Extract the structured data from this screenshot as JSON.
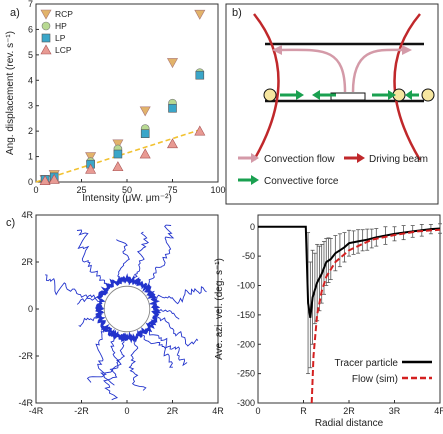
{
  "panels": {
    "a": {
      "letter": "a)"
    },
    "b": {
      "letter": "b)"
    },
    "c": {
      "letter": "c)"
    },
    "d": {
      "letter": ""
    }
  },
  "diagram_b": {
    "legend": [
      {
        "label": "Convection flow",
        "color": "#d49aa8"
      },
      {
        "label": "Driving beam",
        "color": "#c0282b"
      },
      {
        "label": "Convective force",
        "color": "#1aa050"
      }
    ]
  },
  "chart_data": [
    {
      "panel": "a",
      "type": "scatter",
      "xlabel": "Intensity (μW. μm⁻²)",
      "ylabel": "Ang. displacement (rev. s⁻¹)",
      "xlim": [
        0,
        100
      ],
      "ylim": [
        0,
        7
      ],
      "xticks": [
        "0",
        "25",
        "50",
        "75",
        "100"
      ],
      "yticks": [
        "0",
        "1",
        "2",
        "3",
        "4",
        "5",
        "6",
        "7"
      ],
      "legend_position": "top-left",
      "series": [
        {
          "name": "RCP",
          "marker": "triangle-down",
          "color": "#e2b36a",
          "x": [
            5,
            10,
            30,
            45,
            60,
            75,
            90
          ],
          "y": [
            0.1,
            0.3,
            1.0,
            1.5,
            2.8,
            4.7,
            6.6
          ]
        },
        {
          "name": "HP",
          "marker": "circle",
          "color": "#b8d992",
          "x": [
            5,
            10,
            30,
            45,
            60,
            75,
            90
          ],
          "y": [
            0.1,
            0.2,
            0.8,
            1.3,
            2.1,
            3.1,
            4.3
          ]
        },
        {
          "name": "LP",
          "marker": "square",
          "color": "#3aa6c9",
          "x": [
            5,
            10,
            30,
            45,
            60,
            75,
            90
          ],
          "y": [
            0.1,
            0.2,
            0.7,
            1.1,
            1.9,
            2.9,
            4.2
          ]
        },
        {
          "name": "LCP",
          "marker": "triangle-up",
          "color": "#e89a93",
          "x": [
            5,
            10,
            30,
            45,
            60,
            75,
            90
          ],
          "y": [
            0.05,
            0.1,
            0.5,
            0.6,
            1.1,
            1.5,
            2.0
          ]
        }
      ],
      "fit": {
        "color": "#f2c230",
        "x": [
          0,
          90
        ],
        "y": [
          0.0,
          2.05
        ]
      }
    },
    {
      "panel": "c",
      "type": "line",
      "description_free": true,
      "xlim": [
        -4,
        4
      ],
      "ylim": [
        -4,
        4
      ],
      "xticks": [
        "-4R",
        "-2R",
        "0",
        "2R",
        "4R"
      ],
      "yticks": [
        "4R",
        "2R",
        "0",
        "-2R",
        "-4R"
      ],
      "color": "#2233cc",
      "trajectory_angles_deg": [
        20,
        45,
        75,
        100,
        125,
        150,
        165,
        195,
        220,
        245,
        265,
        285,
        300,
        320,
        340,
        355
      ],
      "trajectory_reach": [
        3.6,
        4.1,
        3.4,
        3.0,
        4.0,
        3.9,
        2.2,
        2.3,
        3.5,
        4.0,
        3.3,
        3.6,
        3.5,
        3.2,
        3.4,
        2.4
      ],
      "particle_ring_radius": 1.0,
      "trap_ring_radius": 1.25
    },
    {
      "panel": "d",
      "type": "line",
      "xlabel": "Radial distance",
      "ylabel": "Ave. azi. vel. (deg. s⁻¹)",
      "xlim": [
        0,
        4
      ],
      "ylim": [
        -300,
        20
      ],
      "xticks": [
        "0",
        "R",
        "2R",
        "3R",
        "4R"
      ],
      "yticks": [
        "0",
        "-50",
        "-100",
        "-150",
        "-200",
        "-250",
        "-300"
      ],
      "legend_position": "bottom-right",
      "series": [
        {
          "name": "Tracer particle",
          "color": "#000000",
          "style": "solid",
          "x": [
            0.0,
            1.05,
            1.1,
            1.15,
            1.2,
            1.3,
            1.4,
            1.5,
            1.6,
            1.7,
            1.8,
            1.9,
            2.0,
            2.2,
            2.4,
            2.6,
            2.8,
            3.0,
            3.2,
            3.4,
            3.6,
            3.8,
            4.0
          ],
          "y": [
            0,
            0,
            -130,
            -155,
            -120,
            -95,
            -80,
            -60,
            -55,
            -45,
            -40,
            -35,
            -28,
            -25,
            -22,
            -18,
            -15,
            -12,
            -10,
            -8,
            -6,
            -4,
            -3
          ]
        },
        {
          "name": "Flow (sim)",
          "color": "#d42020",
          "style": "dashed",
          "x": [
            1.18,
            1.22,
            1.3,
            1.4,
            1.5,
            1.7,
            2.0,
            2.5,
            3.0,
            3.5,
            4.0
          ],
          "y": [
            -300,
            -220,
            -150,
            -110,
            -85,
            -60,
            -40,
            -22,
            -14,
            -8,
            -5
          ]
        }
      ],
      "error_bars": {
        "x": [
          1.1,
          1.15,
          1.2,
          1.25,
          1.3,
          1.35,
          1.4,
          1.45,
          1.5,
          1.55,
          1.6,
          1.7,
          1.8,
          1.9,
          2.0,
          2.1,
          2.2,
          2.3,
          2.4,
          2.5,
          2.6,
          2.8,
          3.0,
          3.2,
          3.4,
          3.6,
          3.8,
          4.0
        ],
        "y": [
          -130,
          -150,
          -120,
          -105,
          -95,
          -88,
          -80,
          -70,
          -60,
          -57,
          -55,
          -45,
          -40,
          -35,
          -28,
          -27,
          -25,
          -23,
          -22,
          -20,
          -18,
          -15,
          -12,
          -10,
          -8,
          -6,
          -4,
          -3
        ],
        "err": [
          120,
          90,
          80,
          60,
          65,
          55,
          50,
          45,
          40,
          38,
          35,
          30,
          28,
          25,
          22,
          20,
          20,
          18,
          18,
          16,
          15,
          15,
          12,
          12,
          10,
          10,
          8,
          8
        ]
      }
    }
  ]
}
